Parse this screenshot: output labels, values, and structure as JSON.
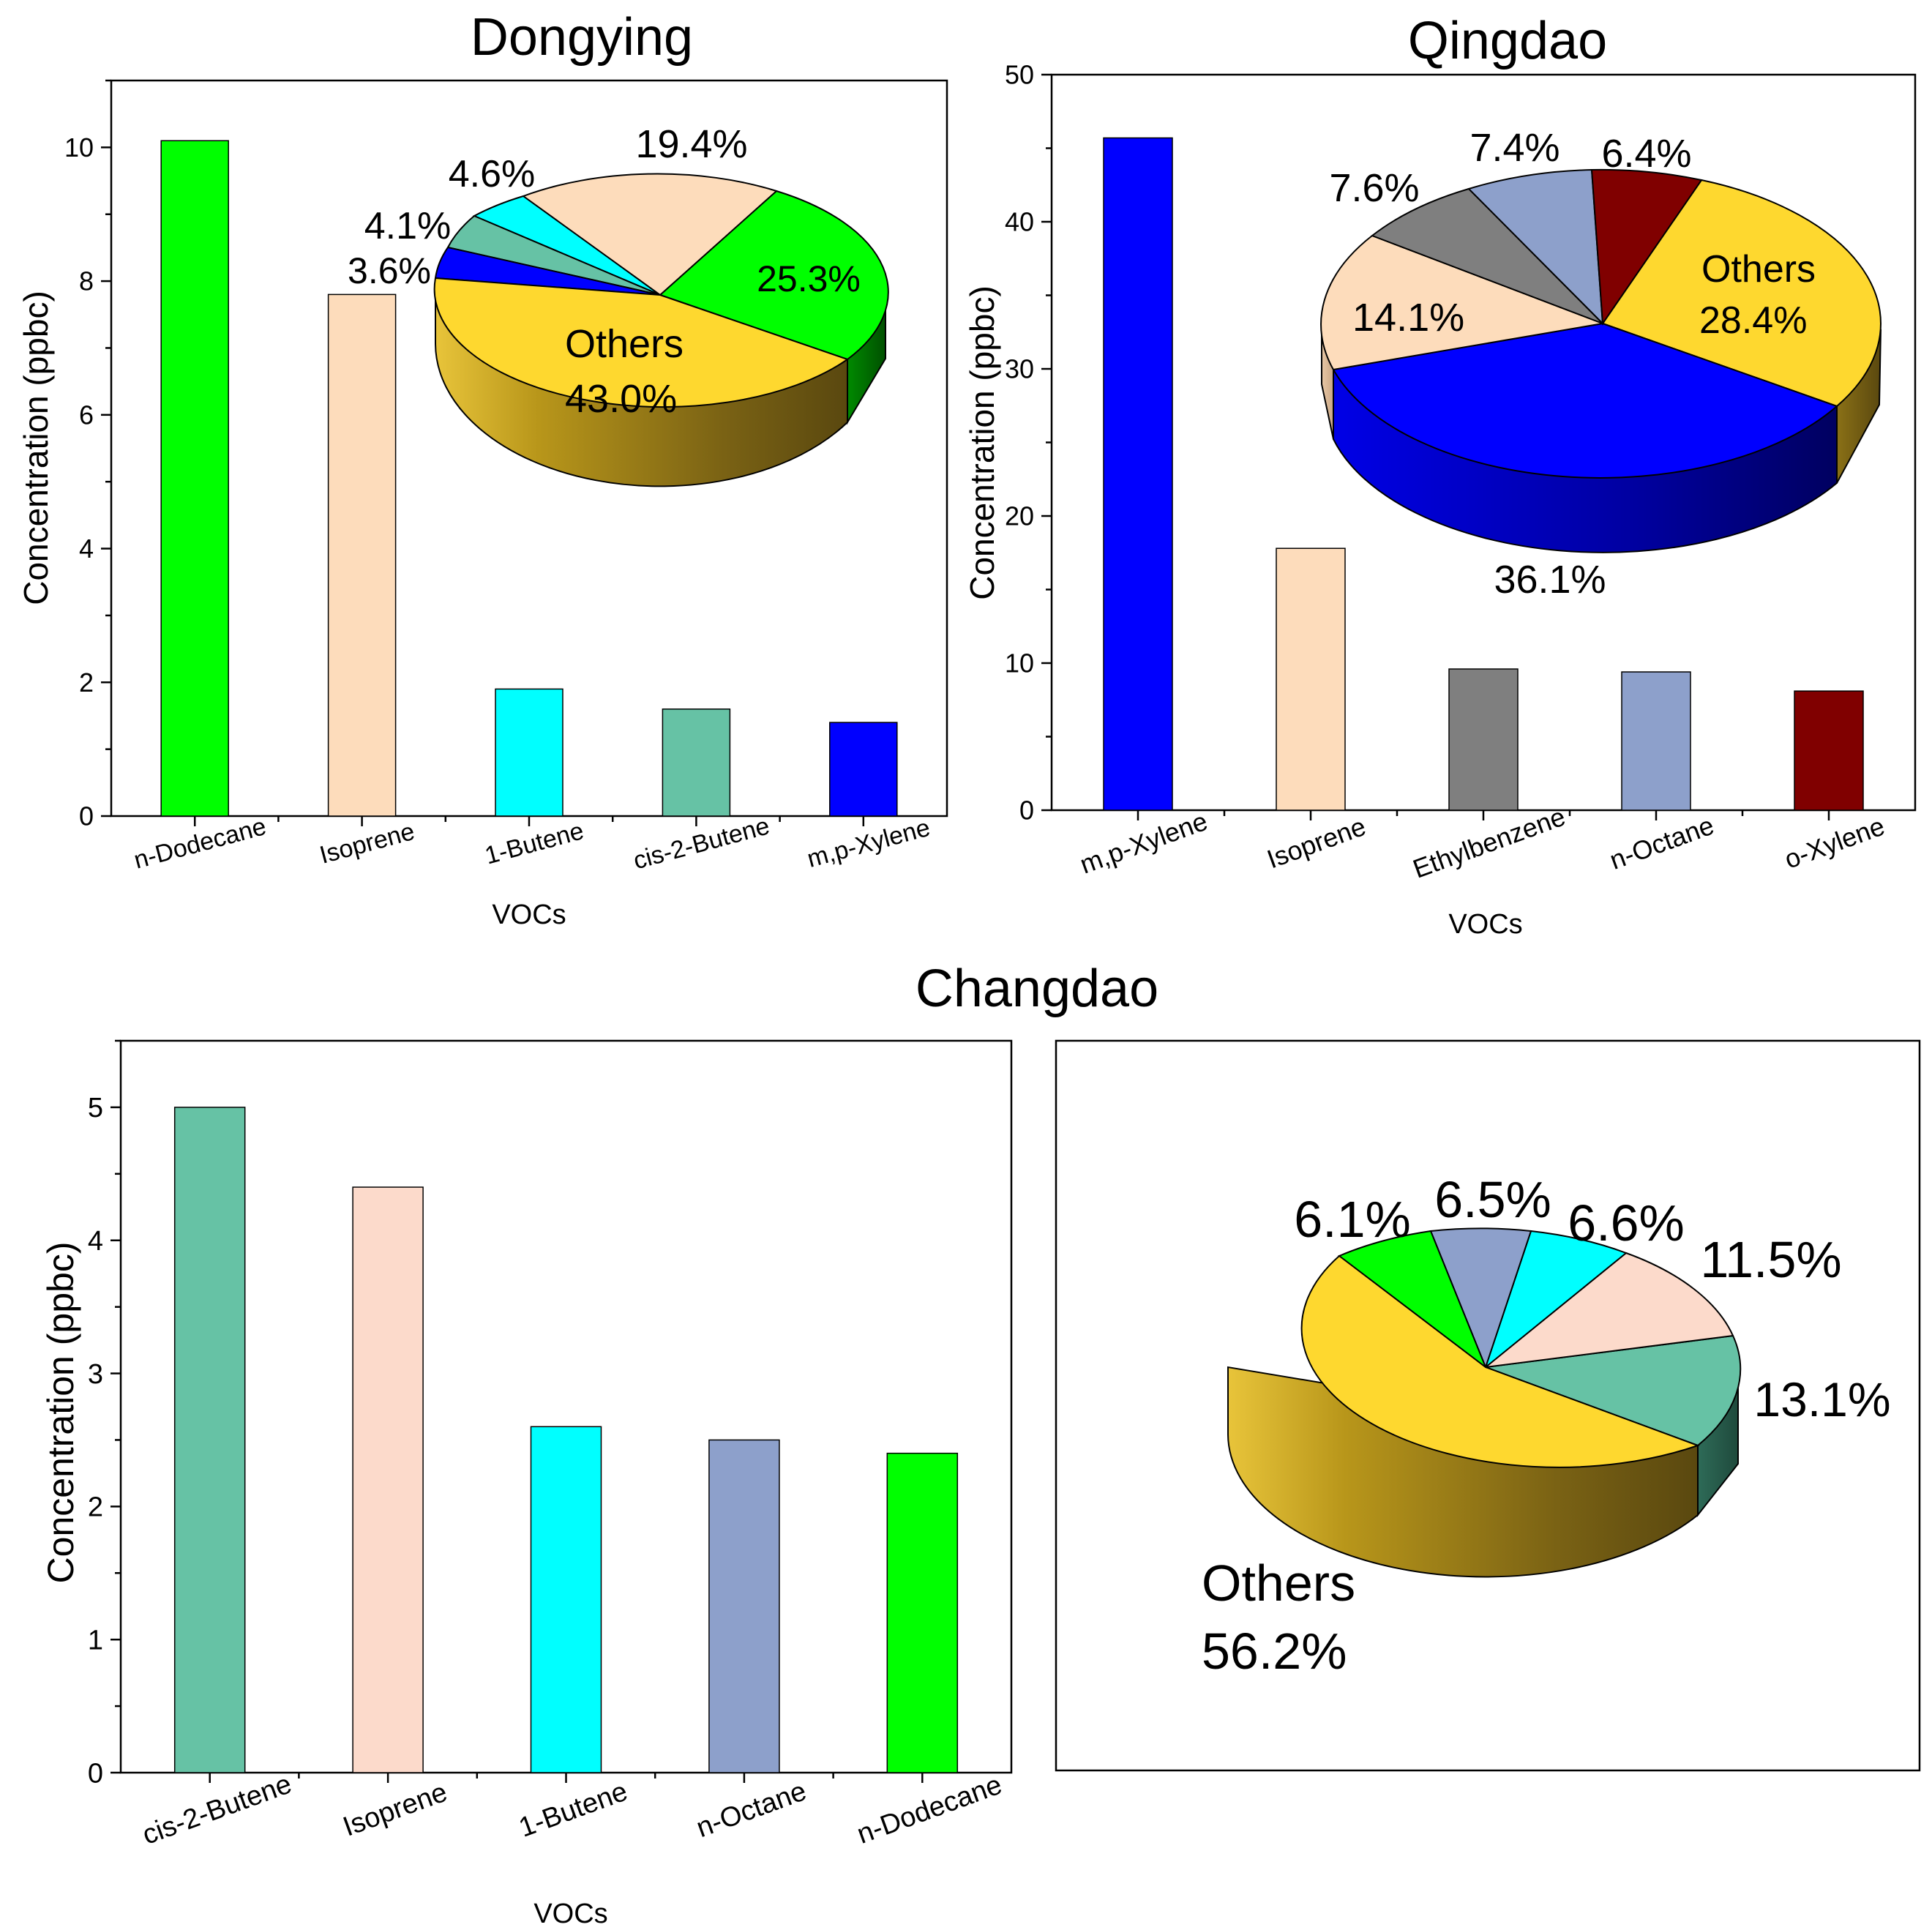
{
  "figure_title_bottom": "Changdao",
  "colors": {
    "green": "#00FF00",
    "peach": "#FDDCBB",
    "cyan": "#00FFFF",
    "teal": "#66C2A5",
    "blue": "#0000FF",
    "yellow": "#FED82F",
    "gray": "#7F7F7F",
    "lavender": "#8DA0CB",
    "darkred": "#800000",
    "pink": "#FCDACB"
  },
  "chart_data": [
    {
      "id": "dongying",
      "type": "bar",
      "title": "Dongying",
      "xlabel": "VOCs",
      "ylabel": "Concentration (ppbc)",
      "categories": [
        "n-Dodecane",
        "Isoprene",
        "1-Butene",
        "cis-2-Butene",
        "m,p-Xylene"
      ],
      "values": [
        10.1,
        7.8,
        1.9,
        1.6,
        1.4
      ],
      "bar_colors": [
        "#00FF00",
        "#FDDCBB",
        "#00FFFF",
        "#66C2A5",
        "#0000FF"
      ],
      "ylim": [
        0,
        11
      ],
      "yticks": [
        0,
        2,
        4,
        6,
        8,
        10
      ],
      "pie": {
        "type": "pie",
        "slices": [
          {
            "label": "25.3%",
            "value": 25.3,
            "color": "#00FF00"
          },
          {
            "label": "19.4%",
            "value": 19.4,
            "color": "#FDDCBB"
          },
          {
            "label": "4.6%",
            "value": 4.6,
            "color": "#00FFFF"
          },
          {
            "label": "4.1%",
            "value": 4.1,
            "color": "#66C2A5"
          },
          {
            "label": "3.6%",
            "value": 3.6,
            "color": "#0000FF"
          },
          {
            "label": "Others",
            "value_label": "43.0%",
            "value": 43.0,
            "color": "#FED82F"
          }
        ]
      }
    },
    {
      "id": "qingdao",
      "type": "bar",
      "title": "Qingdao",
      "xlabel": "VOCs",
      "ylabel": "Concentration (ppbc)",
      "categories": [
        "m,p-Xylene",
        "Isoprene",
        "Ethylbenzene",
        "n-Octane",
        "o-Xylene"
      ],
      "values": [
        45.7,
        17.8,
        9.6,
        9.4,
        8.1
      ],
      "bar_colors": [
        "#0000FF",
        "#FDDCBB",
        "#7F7F7F",
        "#8DA0CB",
        "#800000"
      ],
      "ylim": [
        0,
        50
      ],
      "yticks": [
        0,
        10,
        20,
        30,
        40,
        50
      ],
      "pie": {
        "type": "pie",
        "slices": [
          {
            "label": "Others",
            "value_label": "28.4%",
            "value": 28.4,
            "color": "#FED82F"
          },
          {
            "label": "36.1%",
            "value": 36.1,
            "color": "#0000FF"
          },
          {
            "label": "14.1%",
            "value": 14.1,
            "color": "#FDDCBB"
          },
          {
            "label": "7.6%",
            "value": 7.6,
            "color": "#7F7F7F"
          },
          {
            "label": "7.4%",
            "value": 7.4,
            "color": "#8DA0CB"
          },
          {
            "label": "6.4%",
            "value": 6.4,
            "color": "#800000"
          }
        ]
      }
    },
    {
      "id": "changdao",
      "type": "bar",
      "title": "",
      "xlabel": "VOCs",
      "ylabel": "Concentration (ppbc)",
      "categories": [
        "cis-2-Butene",
        "Isoprene",
        "1-Butene",
        "n-Octane",
        "n-Dodecane"
      ],
      "values": [
        5.0,
        4.4,
        2.6,
        2.5,
        2.4
      ],
      "bar_colors": [
        "#66C2A5",
        "#FCDACB",
        "#00FFFF",
        "#8DA0CB",
        "#00FF00"
      ],
      "ylim": [
        0,
        5.5
      ],
      "yticks": [
        0,
        1,
        2,
        3,
        4,
        5
      ]
    },
    {
      "id": "changdao-pie",
      "type": "pie",
      "slices": [
        {
          "label": "13.1%",
          "value": 13.1,
          "color": "#66C2A5"
        },
        {
          "label": "11.5%",
          "value": 11.5,
          "color": "#FCDACB"
        },
        {
          "label": "6.6%",
          "value": 6.6,
          "color": "#00FFFF"
        },
        {
          "label": "6.5%",
          "value": 6.5,
          "color": "#8DA0CB"
        },
        {
          "label": "6.1%",
          "value": 6.1,
          "color": "#00FF00"
        },
        {
          "label": "Others",
          "value_label": "56.2%",
          "value": 56.2,
          "color": "#FED82F"
        }
      ]
    }
  ]
}
